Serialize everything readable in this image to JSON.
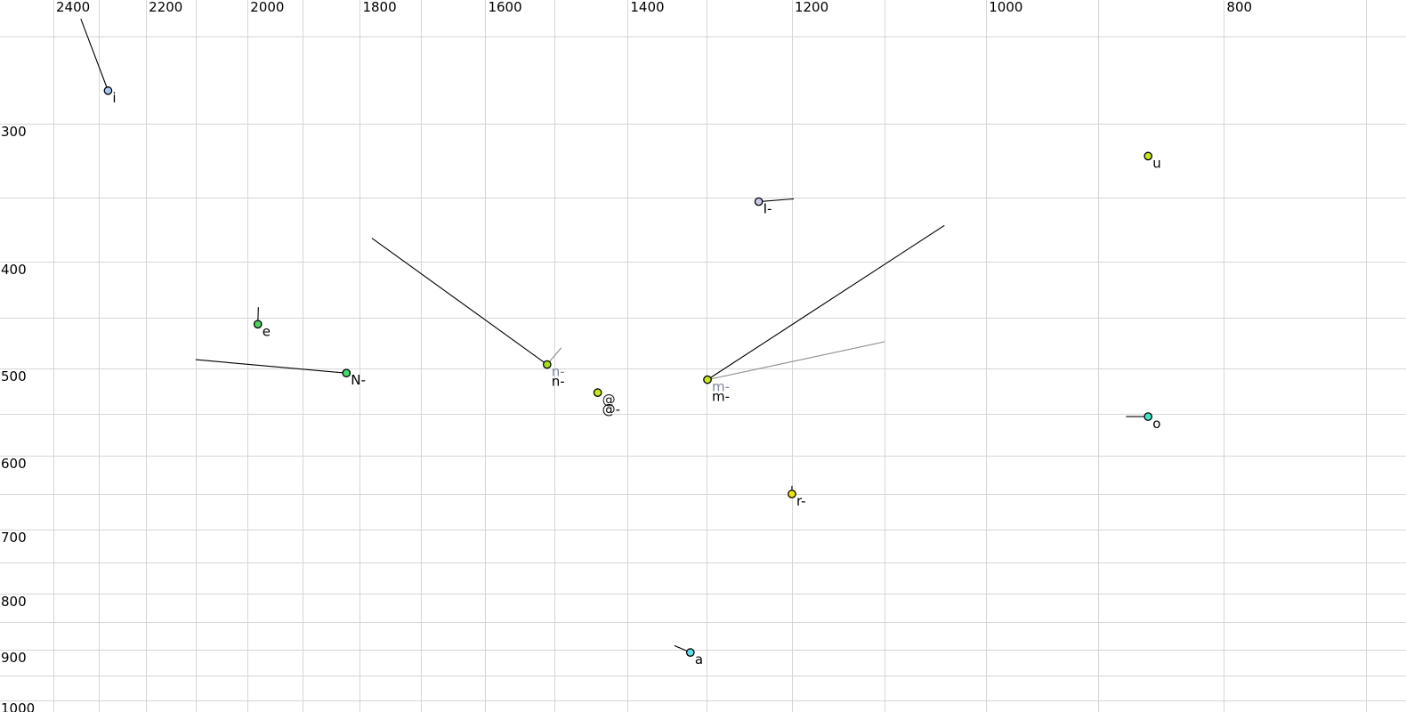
{
  "chart_data": {
    "type": "scatter",
    "title": "",
    "xlabel": "",
    "ylabel": "",
    "x_axis": {
      "position": "top",
      "scale": "log",
      "reversed": true,
      "tick_labels": [
        "2400",
        "2200",
        "2000",
        "1800",
        "1600",
        "1400",
        "1200",
        "1000",
        "800"
      ],
      "tick_values": [
        2400,
        2200,
        2000,
        1800,
        1600,
        1400,
        1200,
        1000,
        800
      ],
      "xlim": [
        2520,
        675
      ]
    },
    "y_axis": {
      "position": "left",
      "scale": "log",
      "inverted": true,
      "tick_labels": [
        "300",
        "400",
        "500",
        "600",
        "700",
        "800",
        "900",
        "1000"
      ],
      "tick_values": [
        300,
        400,
        500,
        600,
        700,
        800,
        900,
        1000
      ],
      "ylim": [
        232,
        1024
      ]
    },
    "grid": {
      "on": true,
      "color": "#d6d6d6",
      "f2_lines": [
        2400,
        2300,
        2200,
        2100,
        2000,
        1900,
        1800,
        1700,
        1600,
        1500,
        1400,
        1300,
        1200,
        1100,
        1000,
        900,
        800,
        700
      ],
      "f1_lines": [
        250,
        300,
        350,
        400,
        450,
        500,
        550,
        600,
        650,
        700,
        750,
        800,
        850,
        900,
        950,
        1000
      ]
    },
    "points": [
      {
        "f2": 2280,
        "f1": 280,
        "fill": "#a8c6f0",
        "labels": [
          {
            "text": "i",
            "color": "#000000"
          }
        ],
        "tails": [
          {
            "f2": 2339,
            "f1": 241,
            "color": "#000000"
          }
        ]
      },
      {
        "f2": 859,
        "f1": 321,
        "fill": "#c8e619",
        "labels": [
          {
            "text": "u",
            "color": "#000000"
          }
        ],
        "tails": []
      },
      {
        "f2": 1238,
        "f1": 353,
        "fill": "#c9c9ec",
        "labels": [
          {
            "text": "I-",
            "color": "#000000"
          }
        ],
        "tails": [
          {
            "f2": 1198,
            "f1": 351,
            "color": "#000000"
          }
        ]
      },
      {
        "f2": 1981,
        "f1": 456,
        "fill": "#4cd45e",
        "labels": [
          {
            "text": "e",
            "color": "#000000"
          }
        ],
        "tails": [
          {
            "f2": 1980,
            "f1": 440,
            "color": "#000000"
          }
        ]
      },
      {
        "f2": 1823,
        "f1": 505,
        "fill": "#3fda69",
        "labels": [
          {
            "text": "N-",
            "color": "#000000"
          }
        ],
        "tails": [
          {
            "f2": 2100,
            "f1": 491,
            "color": "#000000"
          }
        ]
      },
      {
        "f2": 1510,
        "f1": 496,
        "fill": "#a8e01e",
        "labels": [
          {
            "text": "n-",
            "color": "#7e84a0"
          },
          {
            "text": "n-",
            "color": "#000000"
          }
        ],
        "tails": [
          {
            "f2": 1780,
            "f1": 381,
            "color": "#000000"
          },
          {
            "f2": 1490,
            "f1": 479,
            "color": "#8a8a8a"
          }
        ]
      },
      {
        "f2": 1440,
        "f1": 526,
        "fill": "#c8e619",
        "labels": [
          {
            "text": "@",
            "color": "#1a1a1a"
          },
          {
            "text": "@-",
            "color": "#000000"
          }
        ],
        "tails": []
      },
      {
        "f2": 1299,
        "f1": 512,
        "fill": "#c8e619",
        "labels": [
          {
            "text": "m-",
            "color": "#7e84a0"
          },
          {
            "text": "m-",
            "color": "#000000"
          }
        ],
        "tails": [
          {
            "f2": 1040,
            "f1": 371,
            "color": "#000000"
          },
          {
            "f2": 1100,
            "f1": 473,
            "color": "#8a8a8a"
          }
        ]
      },
      {
        "f2": 859,
        "f1": 553,
        "fill": "#44e3c6",
        "labels": [
          {
            "text": "o",
            "color": "#000000"
          }
        ],
        "tails": [
          {
            "f2": 877,
            "f1": 553,
            "color": "#000000"
          }
        ]
      },
      {
        "f2": 1200,
        "f1": 650,
        "fill": "#f2e40c",
        "labels": [
          {
            "text": "r-",
            "color": "#000000"
          }
        ],
        "tails": [
          {
            "f2": 1200,
            "f1": 639,
            "color": "#000000"
          }
        ]
      },
      {
        "f2": 1320,
        "f1": 905,
        "fill": "#64dcf0",
        "labels": [
          {
            "text": "a",
            "color": "#000000"
          }
        ],
        "tails": [
          {
            "f2": 1340,
            "f1": 892,
            "color": "#000000"
          }
        ]
      }
    ],
    "colors": {
      "background": "#ffffff",
      "grid": "#d6d6d6",
      "axis_text": "#000000",
      "point_outline": "#000000",
      "secondary_series": "#8a8a8a"
    }
  }
}
